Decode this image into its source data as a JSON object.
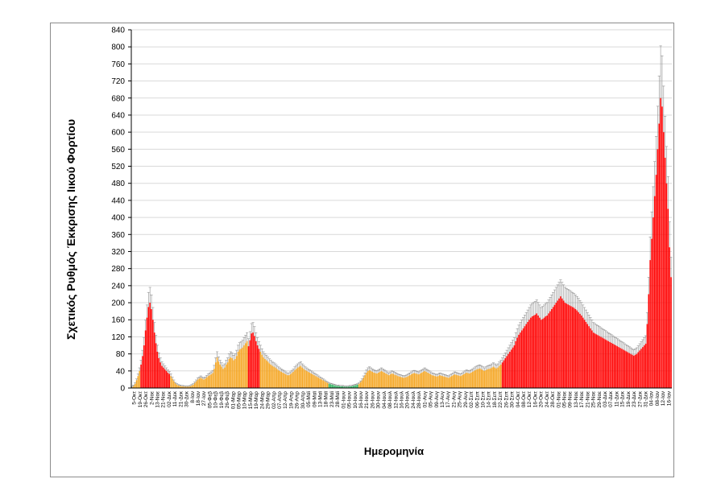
{
  "chart_data": {
    "type": "bar",
    "xlabel": "Ημερομηνία",
    "ylabel": "Σχετικός Ρυθμός Έκκρισης Ιικού Φορτίου",
    "ylim": [
      0,
      840
    ],
    "y_ticks": [
      0,
      40,
      80,
      120,
      160,
      200,
      240,
      280,
      320,
      360,
      400,
      440,
      480,
      520,
      560,
      600,
      640,
      680,
      720,
      760,
      800,
      840
    ],
    "grid": true,
    "legend": "none",
    "colors": {
      "red": "#ff0000",
      "orange": "#f5a623",
      "green": "#2fb35f",
      "error_bar": "#909090",
      "gridline": "#d9d9d9",
      "axis": "#000000"
    },
    "x_tick_labels": [
      "5-Οκτ",
      "19-Οκτ",
      "26-Οκτ",
      "2-Νοε",
      "13-Νοε",
      "21-Νοε",
      "02-Δεκ",
      "11-Δεκ",
      "21-Δεκ",
      "30-Δεκ",
      "8-Ιαν",
      "18-Ιαν",
      "27-Ιαν",
      "05-Φεβ",
      "10-Φεβ",
      "19-Φεβ",
      "26-Φεβ",
      "01-Μαρ",
      "05-Μαρ",
      "10-Μαρ",
      "15-Μαρ",
      "19-Μαρ",
      "24-Μαρ",
      "29-Μαρ",
      "02-Απρ",
      "07-Απρ",
      "12-Απρ",
      "19-Απρ",
      "26-Απρ",
      "30-Απρ",
      "05-Μαϊ",
      "09-Μαϊ",
      "13-Μαϊ",
      "18-Μαϊ",
      "23-Μαϊ",
      "28-Μαϊ",
      "01-Ιουν",
      "05-Ιουν",
      "10-Ιουν",
      "16-Ιουν",
      "21-Ιουν",
      "26-Ιουν",
      "30-Ιουν",
      "04-Ιουλ",
      "08-Ιουλ",
      "12-Ιουλ",
      "16-Ιουλ",
      "20-Ιουλ",
      "24-Ιουλ",
      "28-Ιουλ",
      "01-Αυγ",
      "05-Αυγ",
      "09-Αυγ",
      "13-Αυγ",
      "17-Αυγ",
      "21-Αυγ",
      "25-Αυγ",
      "29-Αυγ",
      "02-Σεπ",
      "06-Σεπ",
      "10-Σεπ",
      "14-Σεπ",
      "18-Σεπ",
      "22-Σεπ",
      "26-Σεπ",
      "30-Σεπ",
      "04-Οκτ",
      "08-Οκτ",
      "12-Οκτ",
      "16-Οκτ",
      "20-Οκτ",
      "24-Οκτ",
      "28-Οκτ",
      "01-Νοε",
      "05-Νοε",
      "09-Νοε",
      "13-Νοε",
      "17-Νοε",
      "21-Νοε",
      "25-Νοε",
      "29-Νοε",
      "03-Δεκ",
      "07-Δεκ",
      "11-Δεκ",
      "15-Δεκ",
      "19-Δεκ",
      "23-Δεκ",
      "27-Δεκ",
      "31-Δεκ",
      "04-Ιαν",
      "08-Ιαν",
      "12-Ιαν",
      "16-Ιαν"
    ],
    "segments": [
      {
        "n": 6,
        "color": "orange",
        "values": [
          2,
          5,
          10,
          18,
          28,
          40
        ]
      },
      {
        "n": 20,
        "color": "red",
        "values": [
          55,
          75,
          100,
          135,
          165,
          190,
          200,
          185,
          160,
          130,
          105,
          85,
          70,
          60,
          52,
          48,
          44,
          40,
          36,
          33
        ]
      },
      {
        "n": 14,
        "color": "orange",
        "values": [
          28,
          22,
          16,
          11,
          8,
          6,
          5,
          4,
          4,
          3,
          3,
          3,
          3,
          4
        ]
      },
      {
        "n": 38,
        "color": "orange",
        "values": [
          6,
          8,
          12,
          16,
          20,
          22,
          24,
          22,
          20,
          22,
          25,
          28,
          30,
          32,
          35,
          45,
          60,
          72,
          62,
          55,
          50,
          45,
          48,
          55,
          60,
          68,
          72,
          70,
          65,
          68,
          75,
          85,
          90,
          92,
          95,
          100,
          105,
          110
        ]
      },
      {
        "n": 8,
        "color": "red",
        "values": [
          98,
          112,
          128,
          130,
          122,
          110,
          100,
          92
        ]
      },
      {
        "n": 46,
        "color": "orange",
        "values": [
          85,
          78,
          72,
          68,
          65,
          62,
          58,
          55,
          52,
          50,
          48,
          45,
          42,
          40,
          38,
          36,
          34,
          32,
          30,
          30,
          32,
          35,
          38,
          42,
          45,
          48,
          50,
          52,
          48,
          45,
          42,
          40,
          38,
          36,
          34,
          32,
          30,
          28,
          26,
          24,
          22,
          20,
          18,
          16,
          14,
          12
        ]
      },
      {
        "n": 20,
        "color": "green",
        "values": [
          10,
          9,
          8,
          7,
          6,
          5,
          5,
          4,
          4,
          4,
          3,
          3,
          3,
          3,
          4,
          4,
          5,
          6,
          7,
          8
        ]
      },
      {
        "n": 96,
        "color": "orange",
        "values": [
          10,
          14,
          18,
          24,
          30,
          36,
          40,
          42,
          40,
          38,
          36,
          35,
          34,
          36,
          38,
          40,
          38,
          36,
          34,
          32,
          30,
          32,
          34,
          33,
          31,
          30,
          28,
          27,
          26,
          25,
          24,
          25,
          26,
          28,
          30,
          32,
          34,
          35,
          34,
          33,
          32,
          34,
          36,
          38,
          40,
          38,
          36,
          34,
          32,
          30,
          29,
          28,
          27,
          28,
          30,
          29,
          28,
          27,
          26,
          25,
          24,
          26,
          28,
          30,
          32,
          31,
          30,
          29,
          28,
          30,
          32,
          34,
          36,
          35,
          34,
          36,
          38,
          40,
          42,
          44,
          45,
          46,
          44,
          42,
          40,
          42,
          44,
          45,
          46,
          48,
          50,
          48,
          46,
          48,
          52,
          55
        ]
      },
      {
        "n": 97,
        "color": "red",
        "values": [
          60,
          65,
          70,
          75,
          80,
          85,
          90,
          95,
          100,
          110,
          118,
          125,
          130,
          135,
          140,
          145,
          150,
          155,
          160,
          165,
          168,
          170,
          172,
          175,
          170,
          165,
          160,
          162,
          165,
          168,
          170,
          175,
          180,
          185,
          190,
          195,
          200,
          205,
          210,
          215,
          210,
          205,
          200,
          198,
          196,
          194,
          192,
          190,
          188,
          185,
          182,
          178,
          174,
          170,
          165,
          160,
          155,
          150,
          145,
          140,
          135,
          130,
          128,
          126,
          124,
          122,
          120,
          118,
          116,
          114,
          112,
          110,
          108,
          106,
          104,
          102,
          100,
          98,
          96,
          94,
          92,
          90,
          88,
          86,
          84,
          82,
          80,
          78,
          76,
          78,
          80,
          84,
          88,
          92,
          96,
          100,
          104
        ]
      },
      {
        "n": 17,
        "color": "red",
        "values": [
          150,
          220,
          300,
          350,
          400,
          450,
          500,
          560,
          620,
          680,
          660,
          600,
          540,
          480,
          420,
          330,
          260
        ]
      }
    ]
  }
}
